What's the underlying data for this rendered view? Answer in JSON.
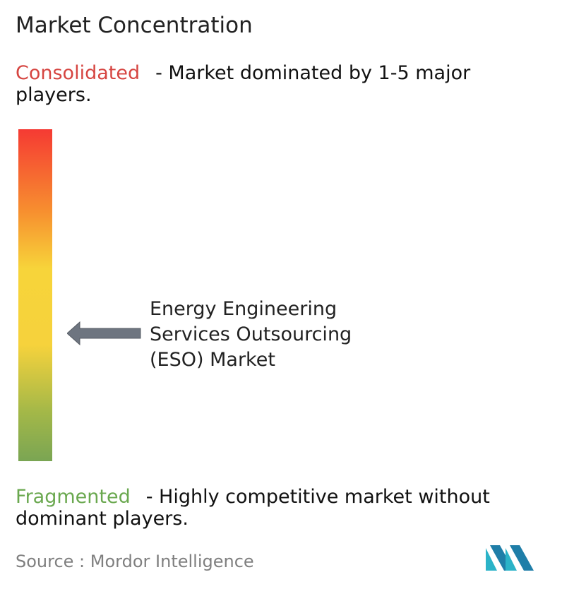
{
  "title": "Market Concentration",
  "consolidated": {
    "label": "Consolidated",
    "description": "- Market dominated by 1-5 major players.",
    "color": "#d64541"
  },
  "fragmented": {
    "label": "Fragmented",
    "description": "- Highly competitive market without dominant players.",
    "color": "#6aa84f"
  },
  "market": {
    "line1": "Energy Engineering",
    "line2": "Services Outsourcing",
    "line3": "(ESO) Market"
  },
  "source": "Source :  Mordor Intelligence",
  "chart_data": {
    "type": "bar",
    "title": "Market Concentration",
    "scale": {
      "top_label": "Consolidated",
      "bottom_label": "Fragmented",
      "gradient": [
        "#f53a33",
        "#f7902f",
        "#f7d43a",
        "#a4b848",
        "#7aa553"
      ]
    },
    "marker": {
      "label": "Energy Engineering Services Outsourcing (ESO) Market",
      "position_fraction_from_top": 0.62
    }
  }
}
